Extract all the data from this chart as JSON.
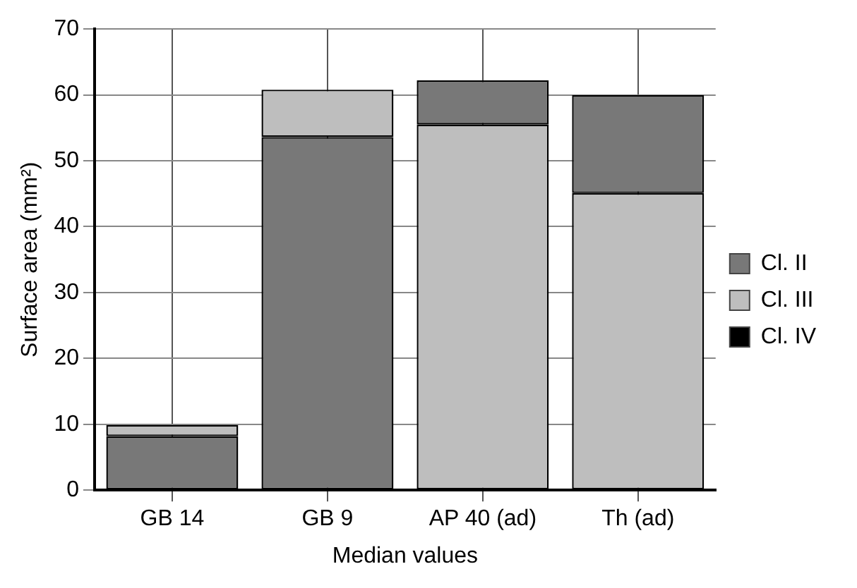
{
  "chart_data": {
    "type": "bar",
    "xlabel": "Median values",
    "ylabel": "Surface area (mm²)",
    "categories": [
      "GB 14",
      "GB 9",
      "AP 40 (ad)",
      "Th (ad)"
    ],
    "series": [
      {
        "name": "Cl. II",
        "color": "#787878",
        "values": [
          8.2,
          53.6,
          6.7,
          14.9
        ],
        "base": [
          0,
          0,
          55.5,
          45.1
        ]
      },
      {
        "name": "Cl. III",
        "color": "#bebebe",
        "values": [
          1.7,
          7.2,
          55.5,
          45.1
        ],
        "base": [
          8.2,
          53.6,
          0,
          0
        ]
      },
      {
        "name": "Cl. IV",
        "color": "#000000",
        "values": [
          null,
          null,
          null,
          null
        ]
      }
    ],
    "ylim": [
      0,
      70
    ],
    "yticks": [
      0,
      10,
      20,
      30,
      40,
      50,
      60,
      70
    ],
    "grid": true,
    "legend": "right"
  }
}
